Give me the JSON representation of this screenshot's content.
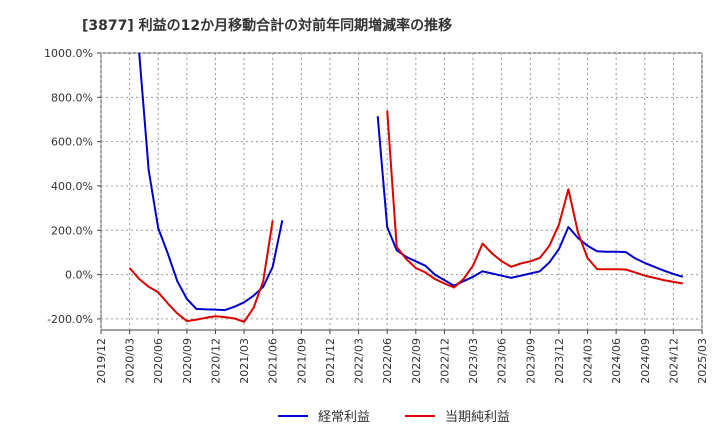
{
  "chart_data": {
    "type": "line",
    "title": "[3877]  利益の12か月移動合計の対前年同期増減率の推移",
    "ylim": [
      -250,
      1000
    ],
    "y_ticks": [
      -200,
      0,
      200,
      400,
      600,
      800,
      1000
    ],
    "y_tick_labels": [
      "-200.0%",
      "0.0%",
      "200.0%",
      "400.0%",
      "600.0%",
      "800.0%",
      "1000.0%"
    ],
    "x_ticks": [
      "2019/12",
      "2020/03",
      "2020/06",
      "2020/09",
      "2020/12",
      "2021/03",
      "2021/06",
      "2021/09",
      "2021/12",
      "2022/03",
      "2022/06",
      "2022/09",
      "2022/12",
      "2023/03",
      "2023/06",
      "2023/09",
      "2023/12",
      "2024/03",
      "2024/06",
      "2024/09",
      "2024/12",
      "2025/03"
    ],
    "grid": true,
    "legend_position": "bottom-center",
    "series": [
      {
        "name": "経常利益",
        "color": "#0000cc",
        "points": [
          [
            "2020/04",
            1000
          ],
          [
            "2020/05",
            470
          ],
          [
            "2020/06",
            210
          ],
          [
            "2020/07",
            95
          ],
          [
            "2020/08",
            -30
          ],
          [
            "2020/09",
            -110
          ],
          [
            "2020/10",
            -155
          ],
          [
            "2020/11",
            -157
          ],
          [
            "2020/12",
            -158
          ],
          [
            "2021/01",
            -160
          ],
          [
            "2021/02",
            -145
          ],
          [
            "2021/03",
            -125
          ],
          [
            "2021/04",
            -95
          ],
          [
            "2021/05",
            -55
          ],
          [
            "2021/06",
            35
          ],
          [
            "2021/07",
            245
          ],
          null,
          [
            "2022/05",
            715
          ],
          [
            "2022/06",
            215
          ],
          [
            "2022/07",
            110
          ],
          [
            "2022/08",
            80
          ],
          [
            "2022/09",
            60
          ],
          [
            "2022/10",
            40
          ],
          [
            "2022/11",
            0
          ],
          [
            "2022/12",
            -25
          ],
          [
            "2023/01",
            -50
          ],
          [
            "2023/02",
            -30
          ],
          [
            "2023/03",
            -10
          ],
          [
            "2023/04",
            15
          ],
          [
            "2023/05",
            5
          ],
          [
            "2023/06",
            -5
          ],
          [
            "2023/07",
            -15
          ],
          [
            "2023/08",
            -5
          ],
          [
            "2023/09",
            5
          ],
          [
            "2023/10",
            15
          ],
          [
            "2023/11",
            55
          ],
          [
            "2023/12",
            115
          ],
          [
            "2024/01",
            215
          ],
          [
            "2024/02",
            165
          ],
          [
            "2024/03",
            130
          ],
          [
            "2024/04",
            105
          ],
          [
            "2024/05",
            103
          ],
          [
            "2024/06",
            103
          ],
          [
            "2024/07",
            102
          ],
          [
            "2024/08",
            73
          ],
          [
            "2024/09",
            53
          ],
          [
            "2024/10",
            35
          ],
          [
            "2024/11",
            18
          ],
          [
            "2024/12",
            3
          ],
          [
            "2025/01",
            -10
          ]
        ]
      },
      {
        "name": "当期純利益",
        "color": "#dd0000",
        "points": [
          [
            "2020/03",
            30
          ],
          [
            "2020/04",
            -20
          ],
          [
            "2020/05",
            -55
          ],
          [
            "2020/06",
            -80
          ],
          [
            "2020/07",
            -130
          ],
          [
            "2020/08",
            -175
          ],
          [
            "2020/09",
            -210
          ],
          [
            "2020/10",
            -203
          ],
          [
            "2020/11",
            -195
          ],
          [
            "2020/12",
            -188
          ],
          [
            "2021/01",
            -192
          ],
          [
            "2021/02",
            -198
          ],
          [
            "2021/03",
            -213
          ],
          [
            "2021/04",
            -150
          ],
          [
            "2021/05",
            -30
          ],
          [
            "2021/06",
            245
          ],
          null,
          [
            "2022/06",
            740
          ],
          [
            "2022/07",
            125
          ],
          [
            "2022/08",
            70
          ],
          [
            "2022/09",
            30
          ],
          [
            "2022/10",
            10
          ],
          [
            "2022/11",
            -20
          ],
          [
            "2022/12",
            -40
          ],
          [
            "2023/01",
            -58
          ],
          [
            "2023/02",
            -20
          ],
          [
            "2023/03",
            40
          ],
          [
            "2023/04",
            140
          ],
          [
            "2023/05",
            95
          ],
          [
            "2023/06",
            60
          ],
          [
            "2023/07",
            35
          ],
          [
            "2023/08",
            50
          ],
          [
            "2023/09",
            60
          ],
          [
            "2023/10",
            75
          ],
          [
            "2023/11",
            130
          ],
          [
            "2023/12",
            225
          ],
          [
            "2024/01",
            385
          ],
          [
            "2024/02",
            190
          ],
          [
            "2024/03",
            75
          ],
          [
            "2024/04",
            25
          ],
          [
            "2024/05",
            24
          ],
          [
            "2024/06",
            24
          ],
          [
            "2024/07",
            23
          ],
          [
            "2024/08",
            10
          ],
          [
            "2024/09",
            -5
          ],
          [
            "2024/10",
            -15
          ],
          [
            "2024/11",
            -25
          ],
          [
            "2024/12",
            -33
          ],
          [
            "2025/01",
            -40
          ]
        ]
      }
    ]
  }
}
